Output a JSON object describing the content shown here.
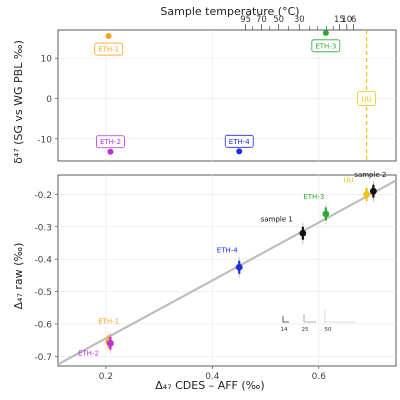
{
  "colors": {
    "ETH-1": "#f5a623",
    "ETH-2": "#b832d6",
    "ETH-3": "#2ea836",
    "ETH-4": "#1f2ed8",
    "UU": "#f2c21a",
    "sample": "#111111",
    "regression": "#bdbdbd",
    "uu_line": "#f2c21a"
  },
  "chart_data": [
    {
      "type": "scatter",
      "panel": "top",
      "title": "Sample temperature (°C)",
      "ylabel": "δ⁴⁷ (SG vs WG PBL ‰)",
      "ylim": [
        -15.5,
        17
      ],
      "yticks": [
        -10,
        0,
        10
      ],
      "grid": true,
      "top_axis": {
        "ticks": [
          {
            "label": "95",
            "x": 0.4625
          },
          {
            "label": "70",
            "x": 0.4922
          },
          {
            "label": "50",
            "x": 0.5246
          },
          {
            "label": "30",
            "x": 0.5632
          },
          {
            "label": "15",
            "x": 0.6386
          },
          {
            "label": "10",
            "x": 0.6526
          },
          {
            "label": "6",
            "x": 0.6654
          }
        ],
        "minor_ticks": [
          0.475,
          0.508,
          0.543,
          0.583,
          0.598,
          0.614,
          0.627
        ]
      },
      "uu_vertical_line_x": 0.6897,
      "points": [
        {
          "label": "ETH-1",
          "x": 0.2052,
          "y": 15.5
        },
        {
          "label": "ETH-2",
          "x": 0.2085,
          "y": -13.2
        },
        {
          "label": "ETH-3",
          "x": 0.6132,
          "y": 16.3
        },
        {
          "label": "ETH-4",
          "x": 0.4505,
          "y": -13.1
        },
        {
          "label": "UU",
          "x": 0.6897,
          "y": 0.0
        }
      ]
    },
    {
      "type": "scatter",
      "panel": "bottom",
      "xlabel": "Δ₄₇ CDES – AFF (‰)",
      "ylabel": "Δ₄₇ raw (‰)",
      "xlim": [
        0.11,
        0.745
      ],
      "ylim": [
        -0.73,
        -0.14
      ],
      "xticks": [
        0.2,
        0.4,
        0.6
      ],
      "yticks": [
        -0.7,
        -0.6,
        -0.5,
        -0.4,
        -0.3,
        -0.2
      ],
      "grid": true,
      "regression": {
        "x": [
          0.11,
          0.745
        ],
        "y": [
          -0.725,
          -0.157
        ]
      },
      "points": [
        {
          "label": "ETH-1",
          "x": 0.2052,
          "y": -0.655,
          "err": 0.02
        },
        {
          "label": "ETH-2",
          "x": 0.2085,
          "y": -0.66,
          "err": 0.02
        },
        {
          "label": "ETH-4",
          "x": 0.4505,
          "y": -0.425,
          "err": 0.02
        },
        {
          "label": "sample 1",
          "x": 0.57,
          "y": -0.32,
          "err": 0.02
        },
        {
          "label": "ETH-3",
          "x": 0.6132,
          "y": -0.26,
          "err": 0.02
        },
        {
          "label": "UU",
          "x": 0.6897,
          "y": -0.2,
          "err": 0.02
        },
        {
          "label": "sample 2",
          "x": 0.7025,
          "y": -0.19,
          "err": 0.02
        }
      ],
      "size_legend": [
        "14",
        "25",
        "50"
      ]
    }
  ]
}
